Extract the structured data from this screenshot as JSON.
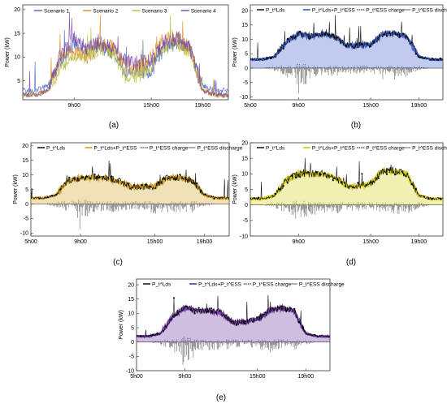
{
  "colors": {
    "black": "#000000",
    "axis": "#333333",
    "discharge": "#8c8c8c",
    "discharge_fill": "#c0c0c0",
    "scenario_1": "#4466bb",
    "scenario_2": "#dd8822",
    "scenario_3": "#bbbb33",
    "scenario_4": "#7744aa",
    "fill_b": "#4a6ad0",
    "fill_c": "#d8a830",
    "fill_d": "#d8d020",
    "fill_e": "#7744aa",
    "red_edge": "#dd2222",
    "cyan_edge": "#22dddd"
  },
  "chart_data": [
    {
      "panel": "(a)",
      "type": "line",
      "ylabel": "Power (kW)",
      "xlabel": "",
      "x_ticks": [
        "9h00",
        "15h00",
        "19h00"
      ],
      "x_tick_hours": [
        9,
        15,
        19
      ],
      "x_range_hours": [
        5,
        21
      ],
      "y_ticks": [
        5,
        10,
        15,
        20
      ],
      "ylim": [
        1,
        21
      ],
      "legend": [
        "Scenario 1",
        "Scenario 2",
        "Scenario 3",
        "Scenario 4"
      ],
      "legend_position": "top",
      "series": [
        {
          "name": "Scenario 1",
          "color_key": "scenario_1"
        },
        {
          "name": "Scenario 2",
          "color_key": "scenario_2"
        },
        {
          "name": "Scenario 3",
          "color_key": "scenario_3"
        },
        {
          "name": "Scenario 4",
          "color_key": "scenario_4"
        }
      ],
      "approx_hourly_profile": {
        "x_hours": [
          5,
          6,
          7,
          8,
          9,
          10,
          11,
          12,
          13,
          14,
          15,
          16,
          17,
          18,
          19,
          20,
          21
        ],
        "Scenario 1": [
          3,
          3,
          4,
          9,
          13,
          11,
          12,
          11,
          7,
          7,
          7,
          12,
          13,
          12,
          4,
          3,
          3
        ],
        "Scenario 2": [
          2,
          2,
          3,
          10,
          11,
          10,
          13,
          12,
          8,
          8,
          10,
          14,
          14,
          12,
          3,
          2,
          2
        ],
        "Scenario 3": [
          2,
          2,
          3,
          8,
          10,
          10,
          12,
          11,
          6,
          6,
          8,
          12,
          13,
          11,
          3,
          2,
          2
        ],
        "Scenario 4": [
          2,
          2,
          3,
          11,
          14,
          12,
          13,
          12,
          9,
          9,
          9,
          13,
          14,
          12,
          3,
          2,
          2
        ]
      }
    },
    {
      "panel": "(b)",
      "type": "line",
      "ylabel": "Power (kW)",
      "xlabel": "",
      "x_ticks": [
        "5h00",
        "9h00",
        "15h00",
        "19h00"
      ],
      "x_tick_hours": [
        5,
        9,
        15,
        19
      ],
      "x_range_hours": [
        5,
        21
      ],
      "y_ticks": [
        -10,
        -5,
        0,
        5,
        10,
        15,
        20
      ],
      "ylim": [
        -11,
        22
      ],
      "legend": [
        "P_t^Lds",
        "P_t^Lds+P_t^ESS",
        "P_t^ESS charge",
        "P_t^ESS discharge"
      ],
      "legend_position": "top",
      "fill_color_key": "fill_b",
      "edge_color_key": "cyan_edge",
      "approx_hourly_profile": {
        "x_hours": [
          5,
          6,
          7,
          8,
          9,
          10,
          11,
          12,
          13,
          14,
          15,
          16,
          17,
          18,
          19,
          20,
          21
        ],
        "load": [
          3,
          3,
          4,
          9,
          12,
          11,
          12,
          11,
          8,
          8,
          8,
          12,
          12,
          11,
          4,
          3,
          3
        ],
        "charge_peak": [
          0,
          0,
          1,
          1,
          2,
          1,
          1,
          1,
          1,
          1,
          1,
          1,
          1,
          1,
          1,
          0,
          0
        ],
        "discharge_peak": [
          0,
          0,
          -1,
          -3,
          -9,
          -4,
          -3,
          -3,
          -2,
          -2,
          -2,
          -4,
          -4,
          -3,
          -1,
          0,
          0
        ]
      }
    },
    {
      "panel": "(c)",
      "type": "line",
      "ylabel": "Power (kW)",
      "xlabel": "",
      "x_ticks": [
        "5h00",
        "9h00",
        "15h00",
        "19h00"
      ],
      "x_tick_hours": [
        5,
        9,
        15,
        19
      ],
      "x_range_hours": [
        5,
        21
      ],
      "y_ticks": [
        -10,
        -5,
        0,
        5,
        10,
        15,
        20
      ],
      "ylim": [
        -11,
        21
      ],
      "legend": [
        "P_t^Lds",
        "P_t^Lds+P_t^ESS",
        "P_t^ESS charge",
        "P_t^ESS discharge"
      ],
      "legend_position": "top",
      "fill_color_key": "fill_c",
      "edge_color_key": "red_edge",
      "approx_hourly_profile": {
        "x_hours": [
          5,
          6,
          7,
          8,
          9,
          10,
          11,
          12,
          13,
          14,
          15,
          16,
          17,
          18,
          19,
          20,
          21
        ],
        "load": [
          2,
          2,
          3,
          8,
          9,
          9,
          9,
          8,
          6,
          6,
          6,
          9,
          9,
          8,
          3,
          2,
          2
        ],
        "charge_peak": [
          0,
          0,
          1,
          1,
          2,
          1,
          1,
          1,
          1,
          1,
          1,
          1,
          1,
          1,
          1,
          0,
          0
        ],
        "discharge_peak": [
          0,
          0,
          -1,
          -3,
          -9,
          -3,
          -3,
          -3,
          -2,
          -2,
          -4,
          -3,
          -3,
          -3,
          -1,
          0,
          0
        ]
      }
    },
    {
      "panel": "(d)",
      "type": "line",
      "ylabel": "Power (kW)",
      "xlabel": "",
      "x_ticks": [
        "9h00",
        "15h00",
        "19h00"
      ],
      "x_tick_hours": [
        9,
        15,
        19
      ],
      "x_range_hours": [
        5,
        21
      ],
      "y_ticks": [
        -10,
        -5,
        0,
        5,
        10,
        15,
        20
      ],
      "ylim": [
        -10,
        20
      ],
      "legend": [
        "P_t^Lds",
        "P_t^Lds+P_t^ESS",
        "P_t^ESS charge",
        "P_t^ESS discharge"
      ],
      "legend_position": "top",
      "fill_color_key": "fill_d",
      "edge_color_key": "red_edge",
      "approx_hourly_profile": {
        "x_hours": [
          5,
          6,
          7,
          8,
          9,
          10,
          11,
          12,
          13,
          14,
          15,
          16,
          17,
          18,
          19,
          20,
          21
        ],
        "load": [
          2,
          2,
          3,
          8,
          10,
          10,
          10,
          9,
          6,
          6,
          7,
          11,
          11,
          10,
          3,
          2,
          2
        ],
        "charge_peak": [
          0,
          0,
          1,
          1,
          2,
          1,
          1,
          1,
          1,
          1,
          1,
          1,
          1,
          1,
          1,
          0,
          0
        ],
        "discharge_peak": [
          0,
          0,
          -1,
          -3,
          -6,
          -4,
          -3,
          -3,
          -2,
          -2,
          -2,
          -3,
          -3,
          -3,
          -1,
          0,
          0
        ]
      }
    },
    {
      "panel": "(e)",
      "type": "line",
      "ylabel": "Power (kW)",
      "xlabel": "",
      "x_ticks": [
        "5h00",
        "9h00",
        "15h00",
        "19h00"
      ],
      "x_tick_hours": [
        5,
        9,
        15,
        19
      ],
      "x_range_hours": [
        5,
        21
      ],
      "y_ticks": [
        -10,
        -5,
        0,
        5,
        10,
        15,
        20
      ],
      "ylim": [
        -10,
        22
      ],
      "legend": [
        "P_t^Lds",
        "P_t^Lds+P_t^ESS",
        "P_t^ESS charge",
        "P_t^ESS discharge"
      ],
      "legend_position": "top",
      "fill_color_key": "fill_e",
      "edge_color_key": "red_edge",
      "approx_hourly_profile": {
        "x_hours": [
          5,
          6,
          7,
          8,
          9,
          10,
          11,
          12,
          13,
          14,
          15,
          16,
          17,
          18,
          19,
          20,
          21
        ],
        "load": [
          2,
          2,
          3,
          9,
          12,
          11,
          11,
          10,
          7,
          7,
          8,
          11,
          12,
          11,
          3,
          2,
          2
        ],
        "charge_peak": [
          0,
          0,
          1,
          1,
          2,
          1,
          1,
          1,
          1,
          1,
          1,
          1,
          1,
          1,
          1,
          0,
          0
        ],
        "discharge_peak": [
          0,
          0,
          -1,
          -3,
          -9,
          -4,
          -3,
          -3,
          -2,
          -2,
          -2,
          -4,
          -4,
          -3,
          -1,
          0,
          0
        ]
      }
    }
  ]
}
